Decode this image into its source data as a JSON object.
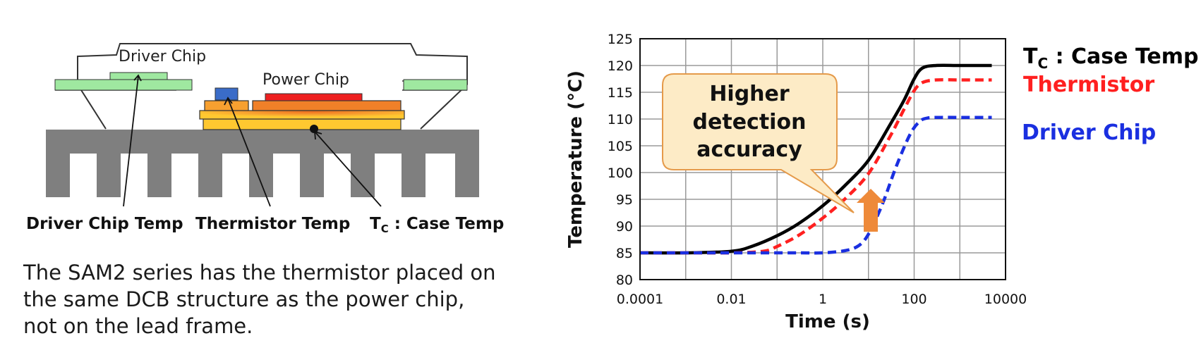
{
  "diagram": {
    "label_driver_chip": "Driver Chip",
    "label_power_chip": "Power Chip",
    "label_driver_chip_temp": "Driver Chip Temp",
    "label_thermistor_temp": "Thermistor Temp",
    "label_case_temp_main": "T",
    "label_case_temp_sub": "C",
    "label_case_temp_rest": " : Case Temp"
  },
  "description": {
    "line1": "The SAM2 series has the thermistor placed on",
    "line2": "the same DCB structure as the power chip,",
    "line3": "not on the lead frame."
  },
  "callout": {
    "line1": "Higher",
    "line2": "detection",
    "line3": "accuracy"
  },
  "colors": {
    "case_temp": "#000000",
    "thermistor": "#ff2020",
    "driver_chip": "#1a2fe0",
    "arrow": "#ee8a3a",
    "callout_fill": "#fdebc6",
    "callout_stroke": "#e59a4a"
  },
  "chart_data": {
    "type": "line",
    "xlabel": "Time (s)",
    "ylabel": "Temperature (°C)",
    "x_scale": "log",
    "xlim": [
      0.0001,
      10000
    ],
    "ylim": [
      80,
      125
    ],
    "x_ticks": [
      "0.0001",
      "0.01",
      "1",
      "100",
      "10000"
    ],
    "y_ticks": [
      "80",
      "85",
      "90",
      "95",
      "100",
      "105",
      "110",
      "115",
      "120",
      "125"
    ],
    "grid": true,
    "legend_placement": "right",
    "series": [
      {
        "name_main": "T",
        "name_sub": "C",
        "name_rest": " : Case Temp",
        "style": "solid",
        "color": "#000000",
        "x": [
          0.0001,
          0.001,
          0.01,
          0.03,
          0.1,
          0.3,
          1,
          3,
          10,
          30,
          60,
          100,
          150,
          300,
          1000,
          5000
        ],
        "y": [
          85,
          85,
          85.3,
          86.3,
          88.2,
          90.5,
          93.8,
          97.5,
          102.3,
          109,
          113.5,
          117.5,
          119.5,
          120,
          120,
          120
        ]
      },
      {
        "name": "Thermistor",
        "style": "dashed",
        "color": "#ff2020",
        "x": [
          0.0001,
          0.001,
          0.01,
          0.05,
          0.1,
          0.3,
          1,
          3,
          10,
          30,
          60,
          100,
          150,
          300,
          1000,
          5000
        ],
        "y": [
          85,
          85,
          85,
          85.3,
          86.2,
          88.3,
          91.5,
          95,
          99.8,
          106.8,
          111.8,
          115.3,
          116.8,
          117.3,
          117.3,
          117.3
        ]
      },
      {
        "name": "Driver Chip",
        "style": "dashed",
        "color": "#1a2fe0",
        "x": [
          0.0001,
          0.01,
          0.3,
          1,
          3,
          6,
          10,
          20,
          40,
          80,
          130,
          200,
          400,
          1000,
          5000
        ],
        "y": [
          85,
          85,
          85,
          85,
          85.4,
          86.3,
          88.5,
          94,
          101,
          107,
          109.5,
          110.2,
          110.3,
          110.3,
          110.3
        ]
      }
    ]
  }
}
